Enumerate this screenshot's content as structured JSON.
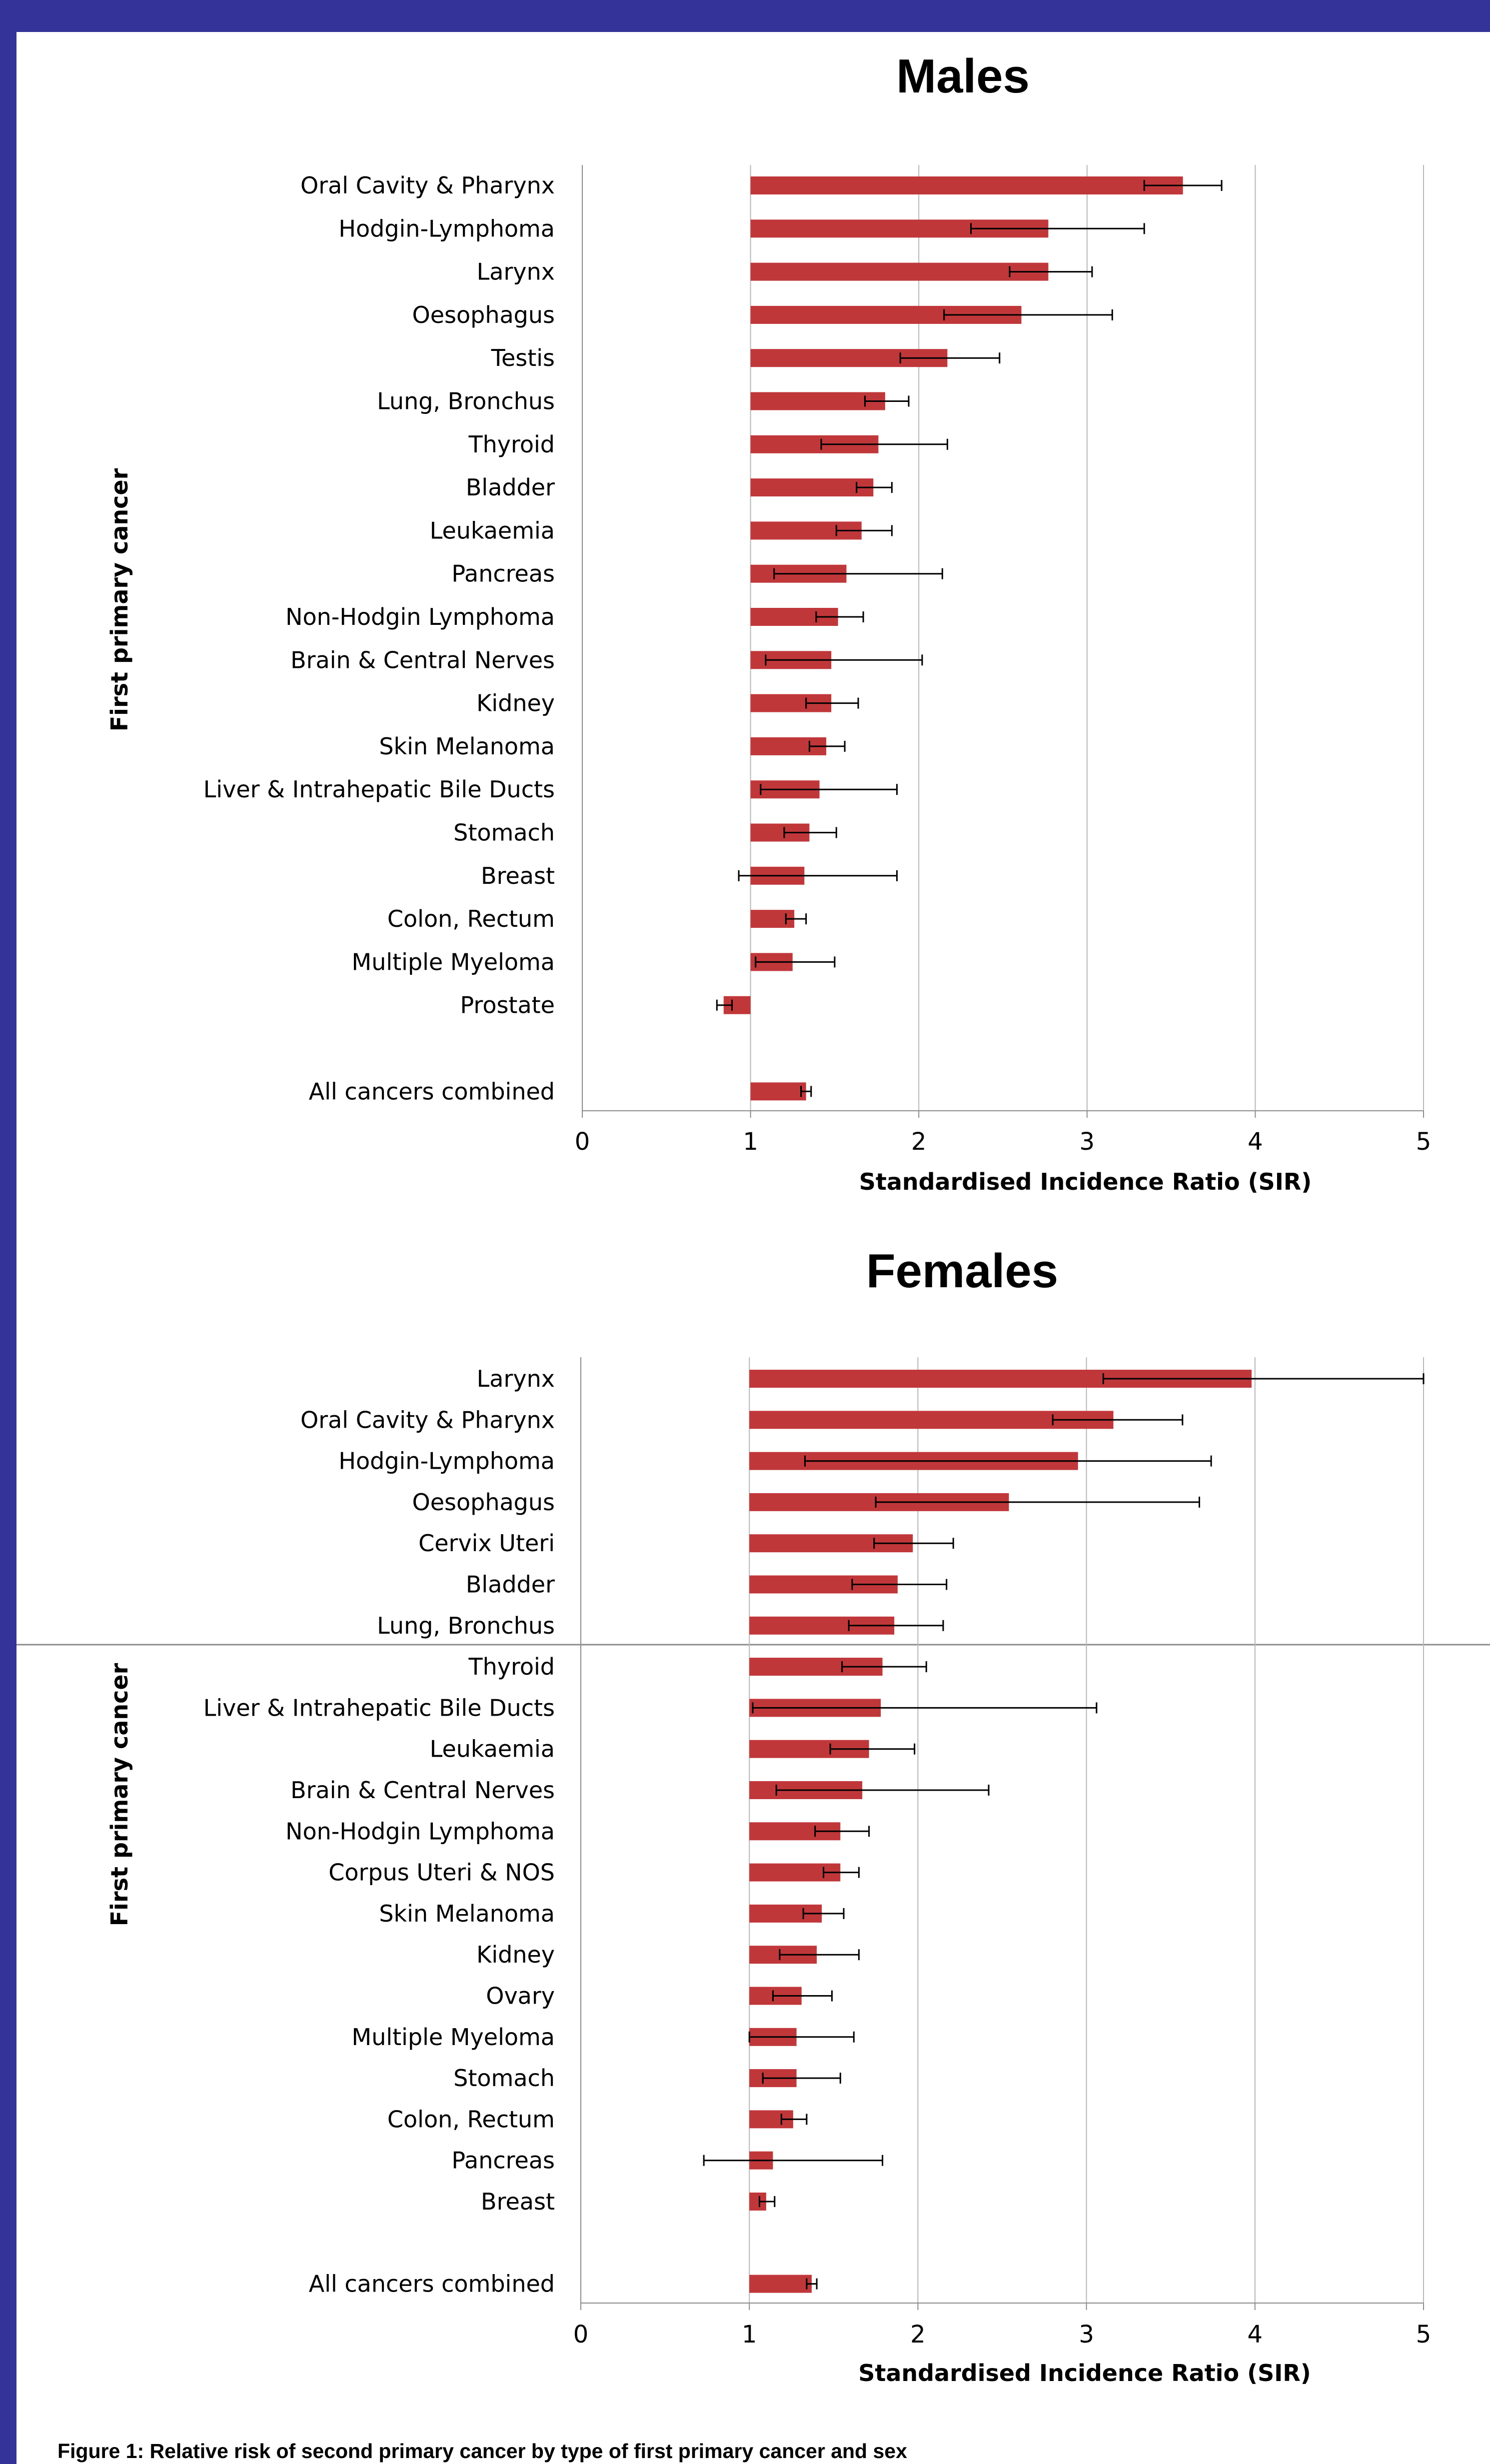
{
  "caption": "Figure 1: Relative risk of second primary cancer by type of first primary cancer and sex",
  "colors": {
    "bar": "#c0373a",
    "frame": "#333399",
    "grid": "#b8b8b8",
    "axis": "#8c8c8c",
    "error": "#000000"
  },
  "chart_data": [
    {
      "type": "bar",
      "orientation": "horizontal",
      "title": "Males",
      "xlabel": "Standardised Incidence Ratio (SIR)",
      "ylabel": "First primary cancer",
      "xlim": [
        0,
        5
      ],
      "xticks": [
        "0",
        "1",
        "2",
        "3",
        "4",
        "5"
      ],
      "grid": "vertical",
      "baseline": 1,
      "categories": [
        "Oral Cavity & Pharynx",
        "Hodgin-Lymphoma",
        "Larynx",
        "Oesophagus",
        "Testis",
        "Lung, Bronchus",
        "Thyroid",
        "Bladder",
        "Leukaemia",
        "Pancreas",
        "Non-Hodgin Lymphoma",
        "Brain & Central Nerves",
        "Kidney",
        "Skin Melanoma",
        "Liver & Intrahepatic Bile  Ducts",
        "Stomach",
        "Breast",
        "Colon, Rectum",
        "Multiple Myeloma",
        "Prostate",
        "",
        "All cancers combined"
      ],
      "values": [
        3.57,
        2.77,
        2.77,
        2.61,
        2.17,
        1.8,
        1.76,
        1.73,
        1.66,
        1.57,
        1.52,
        1.48,
        1.48,
        1.45,
        1.41,
        1.35,
        1.32,
        1.26,
        1.25,
        0.84,
        null,
        1.33
      ],
      "error_low": [
        3.34,
        2.31,
        2.54,
        2.15,
        1.89,
        1.68,
        1.42,
        1.63,
        1.51,
        1.14,
        1.39,
        1.09,
        1.33,
        1.35,
        1.06,
        1.2,
        0.93,
        1.21,
        1.03,
        0.8,
        null,
        1.3
      ],
      "error_high": [
        3.8,
        3.34,
        3.03,
        3.15,
        2.48,
        1.94,
        2.17,
        1.84,
        1.84,
        2.14,
        1.67,
        2.02,
        1.64,
        1.56,
        1.87,
        1.51,
        1.87,
        1.33,
        1.5,
        0.89,
        null,
        1.36
      ]
    },
    {
      "type": "bar",
      "orientation": "horizontal",
      "title": "Females",
      "xlabel": "Standardised Incidence Ratio (SIR)",
      "ylabel": "First primary cancer",
      "xlim": [
        0,
        5
      ],
      "xticks": [
        "0",
        "1",
        "2",
        "3",
        "4",
        "5"
      ],
      "grid": "vertical",
      "baseline": 1,
      "categories": [
        "Larynx",
        "Oral Cavity & Pharynx",
        "Hodgin-Lymphoma",
        "Oesophagus",
        "Cervix Uteri",
        "Bladder",
        "Lung, Bronchus",
        "Thyroid",
        "Liver & Intrahepatic Bile  Ducts",
        "Leukaemia",
        "Brain & Central Nerves",
        "Non-Hodgin Lymphoma",
        "Corpus Uteri & NOS",
        "Skin Melanoma",
        "Kidney",
        "Ovary",
        "Multiple Myeloma",
        "Stomach",
        "Colon, Rectum",
        "Pancreas",
        "Breast",
        "",
        "All cancers combined"
      ],
      "values": [
        3.98,
        3.16,
        2.95,
        2.54,
        1.97,
        1.88,
        1.86,
        1.79,
        1.78,
        1.71,
        1.67,
        1.54,
        1.54,
        1.43,
        1.4,
        1.31,
        1.28,
        1.28,
        1.26,
        1.14,
        1.1,
        null,
        1.37
      ],
      "error_low": [
        3.1,
        2.8,
        1.33,
        1.75,
        1.74,
        1.61,
        1.59,
        1.55,
        1.02,
        1.48,
        1.16,
        1.39,
        1.44,
        1.32,
        1.18,
        1.14,
        1.0,
        1.08,
        1.19,
        0.73,
        1.06,
        null,
        1.34
      ],
      "error_high": [
        5.0,
        3.57,
        3.74,
        3.67,
        2.21,
        2.17,
        2.15,
        2.05,
        3.06,
        1.98,
        2.42,
        1.71,
        1.65,
        1.56,
        1.65,
        1.49,
        1.62,
        1.54,
        1.34,
        1.79,
        1.15,
        null,
        1.4
      ]
    }
  ]
}
